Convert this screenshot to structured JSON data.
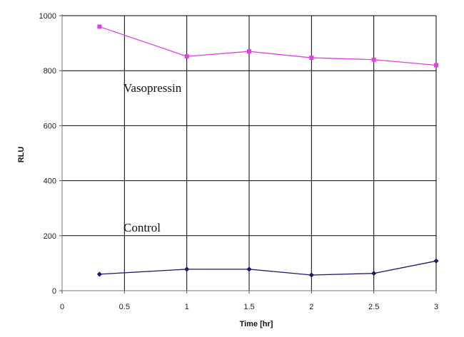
{
  "chart_data": {
    "type": "line",
    "title": "",
    "xlabel": "Time [hr]",
    "ylabel": "RLU",
    "xlim": [
      0,
      3
    ],
    "ylim": [
      0,
      1000
    ],
    "x_ticks": [
      0,
      0.5,
      1,
      1.5,
      2,
      2.5,
      3
    ],
    "x_tick_labels": [
      "0",
      "0.5",
      "1",
      "1.5",
      "2",
      "2.5",
      "3"
    ],
    "y_ticks": [
      0,
      200,
      400,
      600,
      800,
      1000
    ],
    "y_tick_labels": [
      "0",
      "200",
      "400",
      "600",
      "800",
      "1000"
    ],
    "grid": true,
    "legend": "none",
    "series": [
      {
        "name": "Vasopressin",
        "color": "#e040e0",
        "marker": "square",
        "x": [
          0.3,
          1,
          1.5,
          2,
          2.5,
          3
        ],
        "values": [
          960,
          852,
          870,
          847,
          840,
          820
        ]
      },
      {
        "name": "Control",
        "color": "#1a1a6e",
        "marker": "diamond",
        "x": [
          0.3,
          1,
          1.5,
          2,
          2.5,
          3
        ],
        "values": [
          60,
          78,
          78,
          57,
          63,
          108
        ]
      }
    ],
    "annotations": [
      {
        "text": "Vasopressin",
        "series": "Vasopressin"
      },
      {
        "text": "Control",
        "series": "Control"
      }
    ]
  }
}
